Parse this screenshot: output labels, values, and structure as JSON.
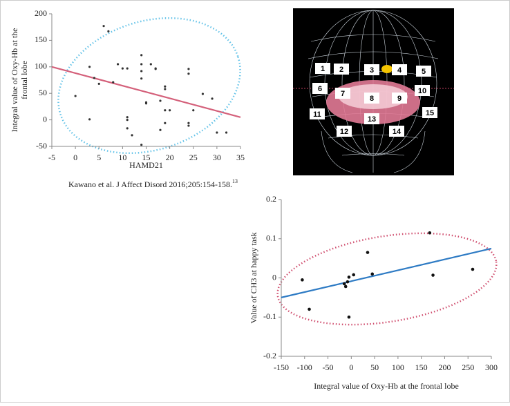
{
  "chart_data": [
    {
      "type": "scatter",
      "xlabel": "HAMD21",
      "ylabel": [
        "Integral value of Oxy-Hb at the",
        "frontal lobe"
      ],
      "caption": "Kawano et al. J Affect Disord 2016;205:154-158.",
      "caption_ref": "13",
      "xlim": [
        -5,
        35
      ],
      "xticks": [
        -5,
        0,
        5,
        10,
        15,
        20,
        25,
        30,
        35
      ],
      "ylim": [
        -50,
        200
      ],
      "yticks": [
        -50,
        0,
        50,
        100,
        150,
        200
      ],
      "color": "#333333",
      "x": [
        6,
        7,
        3,
        4,
        5,
        0,
        3,
        9,
        10,
        11,
        14,
        14,
        14,
        14,
        15,
        15,
        16,
        17,
        17,
        18,
        19,
        19,
        19,
        20,
        19,
        24,
        24,
        24,
        24,
        25,
        27,
        29,
        30,
        32,
        11,
        11,
        11,
        12,
        14,
        18,
        8
      ],
      "y": [
        177,
        167,
        100,
        79,
        68,
        45,
        1,
        105,
        97,
        97,
        122,
        105,
        92,
        78,
        31,
        33,
        105,
        97,
        96,
        36,
        63,
        58,
        18,
        18,
        -6,
        96,
        87,
        -6,
        -11,
        18,
        49,
        40,
        -24,
        -24,
        5,
        0,
        -16,
        -29,
        -47,
        -19,
        71
      ],
      "trendline": {
        "x": [
          -5,
          35
        ],
        "y": [
          100,
          5
        ],
        "color": "#d4607a"
      }
    },
    {
      "type": "scatter",
      "xlabel": "Integral value of Oxy-Hb at the frontal lobe",
      "ylabel": [
        "Value of CH3 at happy task"
      ],
      "xlim": [
        -150,
        300
      ],
      "xticks": [
        -150,
        -100,
        -50,
        0,
        50,
        100,
        150,
        200,
        250,
        300
      ],
      "ylim": [
        -0.2,
        0.2
      ],
      "yticks": [
        -0.2,
        -0.1,
        0,
        0.1,
        0.2
      ],
      "color": "#111111",
      "x": [
        -105,
        -90,
        -15,
        -12,
        -8,
        -5,
        -5,
        5,
        35,
        45,
        168,
        175,
        260
      ],
      "y": [
        -0.005,
        -0.08,
        -0.015,
        -0.022,
        -0.01,
        0.002,
        -0.1,
        0.008,
        0.065,
        0.01,
        0.115,
        0.007,
        0.022
      ],
      "trendline": {
        "x": [
          -150,
          300
        ],
        "y": [
          -0.05,
          0.075
        ],
        "color": "#2e7bc4"
      }
    }
  ],
  "head_diagram": {
    "channels": [
      "1",
      "2",
      "3",
      "4",
      "5",
      "6",
      "7",
      "8",
      "9",
      "10",
      "11",
      "12",
      "13",
      "14",
      "15"
    ]
  }
}
